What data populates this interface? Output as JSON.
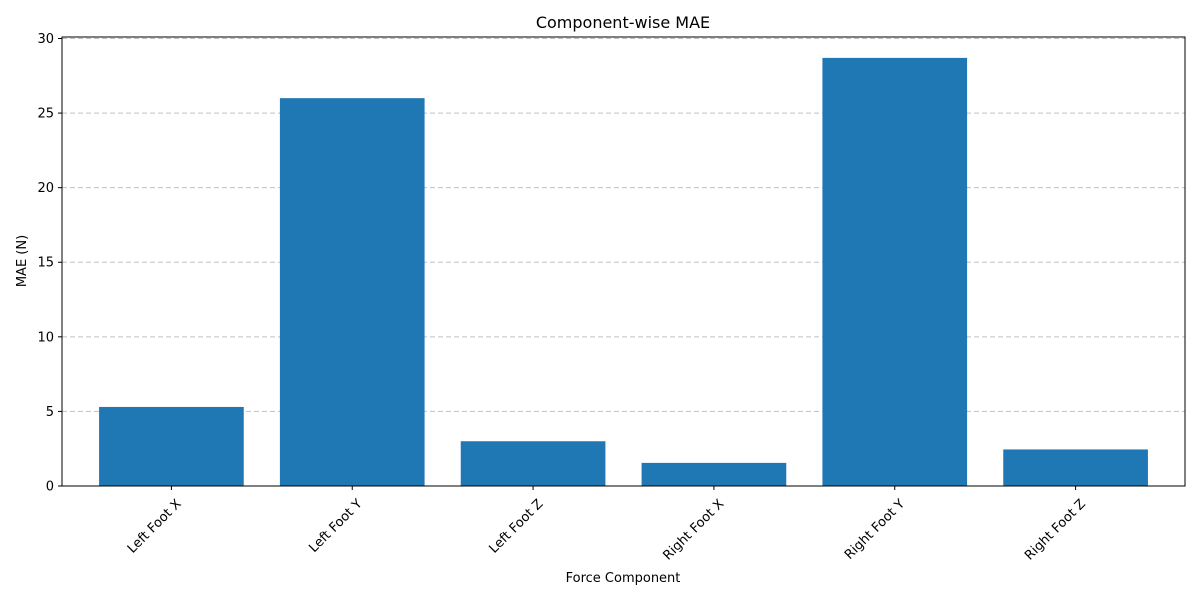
{
  "chart_data": {
    "type": "bar",
    "title": "Component-wise MAE",
    "xlabel": "Force Component",
    "ylabel": "MAE (N)",
    "categories": [
      "Left Foot X",
      "Left Foot Y",
      "Left Foot Z",
      "Right Foot X",
      "Right Foot Y",
      "Right Foot Z"
    ],
    "values": [
      5.3,
      26.0,
      3.0,
      1.55,
      28.7,
      2.45
    ],
    "ylim": [
      0,
      30.1
    ],
    "yticks": [
      0,
      5,
      10,
      15,
      20,
      25,
      30
    ],
    "grid": "y-dashed",
    "bar_color": "#1f77b4",
    "grid_color": "#c0c0c0"
  }
}
